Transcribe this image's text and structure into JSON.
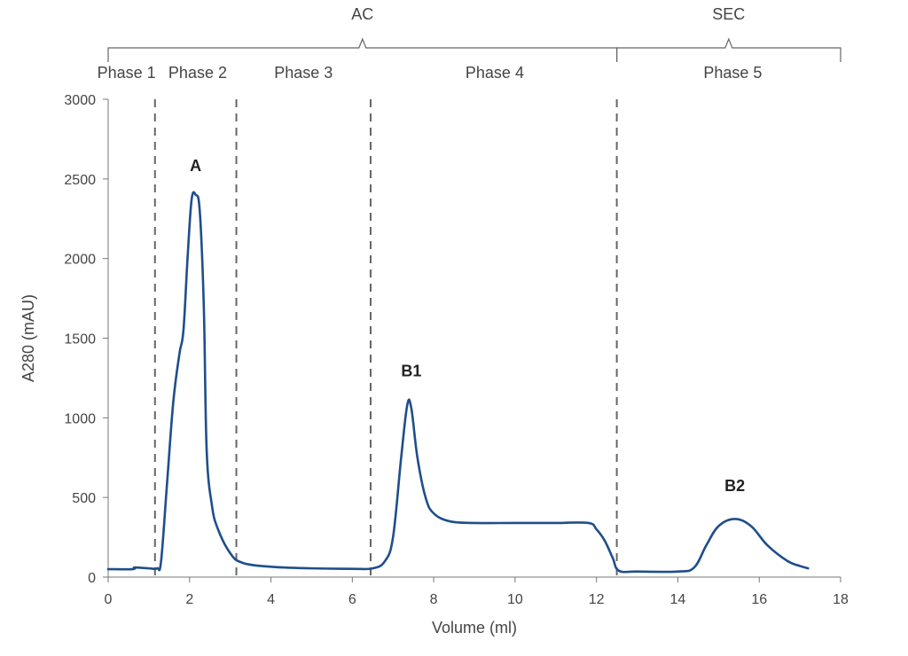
{
  "chart_data": {
    "type": "line",
    "xlabel": "Volume (ml)",
    "ylabel": "A280 (mAU)",
    "xlim": [
      0,
      18
    ],
    "ylim": [
      0,
      3000
    ],
    "x_ticks": [
      "0",
      "2",
      "4",
      "6",
      "8",
      "10",
      "12",
      "14",
      "16",
      "18"
    ],
    "y_ticks": [
      "0",
      "500",
      "1000",
      "1500",
      "2000",
      "2500",
      "3000"
    ],
    "grid": false,
    "line_color": "#1f4e8c",
    "series": [
      {
        "points": [
          [
            0,
            50
          ],
          [
            0.6,
            50
          ],
          [
            0.65,
            60
          ],
          [
            1.0,
            55
          ],
          [
            1.2,
            55
          ],
          [
            1.3,
            100
          ],
          [
            1.45,
            600
          ],
          [
            1.6,
            1100
          ],
          [
            1.75,
            1400
          ],
          [
            1.85,
            1550
          ],
          [
            1.95,
            2000
          ],
          [
            2.05,
            2370
          ],
          [
            2.15,
            2400
          ],
          [
            2.25,
            2300
          ],
          [
            2.35,
            1700
          ],
          [
            2.42,
            800
          ],
          [
            2.55,
            450
          ],
          [
            2.7,
            300
          ],
          [
            3.0,
            150
          ],
          [
            3.3,
            90
          ],
          [
            4.0,
            65
          ],
          [
            5.0,
            55
          ],
          [
            6.0,
            52
          ],
          [
            6.5,
            55
          ],
          [
            6.8,
            100
          ],
          [
            7.0,
            250
          ],
          [
            7.2,
            750
          ],
          [
            7.35,
            1080
          ],
          [
            7.45,
            1060
          ],
          [
            7.6,
            750
          ],
          [
            7.8,
            500
          ],
          [
            8.0,
            400
          ],
          [
            8.4,
            350
          ],
          [
            9.0,
            340
          ],
          [
            10.0,
            340
          ],
          [
            11.0,
            340
          ],
          [
            11.8,
            340
          ],
          [
            12.0,
            300
          ],
          [
            12.2,
            230
          ],
          [
            12.4,
            120
          ],
          [
            12.55,
            40
          ],
          [
            13.0,
            35
          ],
          [
            14.0,
            35
          ],
          [
            14.4,
            60
          ],
          [
            14.7,
            200
          ],
          [
            15.0,
            320
          ],
          [
            15.4,
            365
          ],
          [
            15.8,
            320
          ],
          [
            16.2,
            200
          ],
          [
            16.7,
            100
          ],
          [
            17.0,
            70
          ],
          [
            17.2,
            55
          ]
        ]
      }
    ],
    "phase_boundaries": [
      1.15,
      3.15,
      6.45,
      12.5
    ],
    "phases": [
      {
        "label": "Phase 1",
        "x": 0.45
      },
      {
        "label": "Phase 2",
        "x": 2.2
      },
      {
        "label": "Phase 3",
        "x": 4.8
      },
      {
        "label": "Phase 4",
        "x": 9.5
      },
      {
        "label": "Phase 5",
        "x": 15.35
      }
    ],
    "groups": [
      {
        "label": "AC",
        "x_start": 0,
        "x_end": 12.5
      },
      {
        "label": "SEC",
        "x_start": 12.5,
        "x_end": 18
      }
    ],
    "peaks": [
      {
        "label": "A",
        "x": 2.15,
        "y": 2550
      },
      {
        "label": "B1",
        "x": 7.45,
        "y": 1260
      },
      {
        "label": "B2",
        "x": 15.4,
        "y": 540
      }
    ]
  }
}
